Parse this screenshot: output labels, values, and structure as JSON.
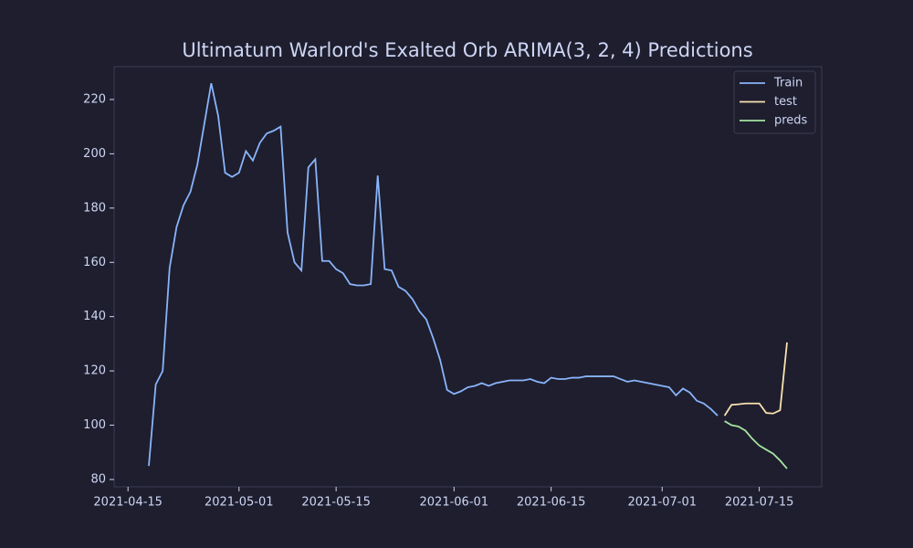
{
  "chart_data": {
    "type": "line",
    "title": "Ultimatum Warlord's Exalted Orb ARIMA(3, 2, 4) Predictions",
    "xlim": [
      "2021-04-13",
      "2021-07-24"
    ],
    "xticks": [
      "2021-04-15",
      "2021-05-01",
      "2021-05-15",
      "2021-06-01",
      "2021-06-15",
      "2021-07-01",
      "2021-07-15"
    ],
    "ylim": [
      77.3,
      232.1
    ],
    "yticks": [
      80,
      100,
      120,
      140,
      160,
      180,
      200,
      220
    ],
    "legend": "upper right",
    "series": [
      {
        "name": "Train",
        "color": "#89b4fa",
        "x": [
          "2021-04-18",
          "2021-04-19",
          "2021-04-20",
          "2021-04-21",
          "2021-04-22",
          "2021-04-23",
          "2021-04-24",
          "2021-04-25",
          "2021-04-26",
          "2021-04-27",
          "2021-04-28",
          "2021-04-29",
          "2021-04-30",
          "2021-05-01",
          "2021-05-02",
          "2021-05-03",
          "2021-05-04",
          "2021-05-05",
          "2021-05-06",
          "2021-05-07",
          "2021-05-08",
          "2021-05-09",
          "2021-05-10",
          "2021-05-11",
          "2021-05-12",
          "2021-05-13",
          "2021-05-14",
          "2021-05-15",
          "2021-05-16",
          "2021-05-17",
          "2021-05-18",
          "2021-05-19",
          "2021-05-20",
          "2021-05-21",
          "2021-05-22",
          "2021-05-23",
          "2021-05-24",
          "2021-05-25",
          "2021-05-26",
          "2021-05-27",
          "2021-05-28",
          "2021-05-29",
          "2021-05-30",
          "2021-05-31",
          "2021-06-01",
          "2021-06-02",
          "2021-06-03",
          "2021-06-04",
          "2021-06-05",
          "2021-06-06",
          "2021-06-07",
          "2021-06-08",
          "2021-06-09",
          "2021-06-10",
          "2021-06-11",
          "2021-06-12",
          "2021-06-13",
          "2021-06-14",
          "2021-06-15",
          "2021-06-16",
          "2021-06-17",
          "2021-06-18",
          "2021-06-19",
          "2021-06-20",
          "2021-06-21",
          "2021-06-22",
          "2021-06-23",
          "2021-06-24",
          "2021-06-25",
          "2021-06-26",
          "2021-06-27",
          "2021-06-28",
          "2021-06-29",
          "2021-06-30",
          "2021-07-01",
          "2021-07-02",
          "2021-07-03",
          "2021-07-04",
          "2021-07-05",
          "2021-07-06",
          "2021-07-07",
          "2021-07-08",
          "2021-07-09"
        ],
        "values": [
          85,
          115,
          120,
          158,
          173,
          181,
          186,
          196,
          211,
          226,
          214,
          193,
          191.5,
          193,
          201,
          197.5,
          204,
          207.5,
          208.5,
          210,
          171,
          160,
          157,
          195,
          198,
          160.5,
          160.5,
          157.5,
          156,
          152,
          151.5,
          151.5,
          152,
          192,
          157.5,
          157,
          151,
          149.5,
          146.5,
          142,
          139,
          132,
          124,
          113,
          111.5,
          112.5,
          114,
          114.5,
          115.5,
          114.5,
          115.5,
          116,
          116.5,
          116.5,
          116.5,
          117,
          116,
          115.5,
          117.5,
          117,
          117,
          117.5,
          117.5,
          118,
          118,
          118,
          118,
          118,
          117,
          116,
          116.5,
          116,
          115.5,
          115,
          114.5,
          114,
          111,
          113.5,
          112,
          109,
          108,
          106,
          103.5
        ]
      },
      {
        "name": "test",
        "color": "#f9e2af",
        "x": [
          "2021-07-10",
          "2021-07-11",
          "2021-07-12",
          "2021-07-13",
          "2021-07-14",
          "2021-07-15",
          "2021-07-16",
          "2021-07-17",
          "2021-07-18",
          "2021-07-19"
        ],
        "values": [
          103.5,
          107.5,
          107.7,
          108,
          108,
          108,
          104.5,
          104.3,
          105.5,
          130.5
        ]
      },
      {
        "name": "preds",
        "color": "#a6e3a1",
        "x": [
          "2021-07-10",
          "2021-07-11",
          "2021-07-12",
          "2021-07-13",
          "2021-07-14",
          "2021-07-15",
          "2021-07-16",
          "2021-07-17",
          "2021-07-18",
          "2021-07-19"
        ],
        "values": [
          101.5,
          100,
          99.5,
          98,
          95,
          92.5,
          91,
          89.5,
          87,
          84
        ]
      }
    ]
  }
}
